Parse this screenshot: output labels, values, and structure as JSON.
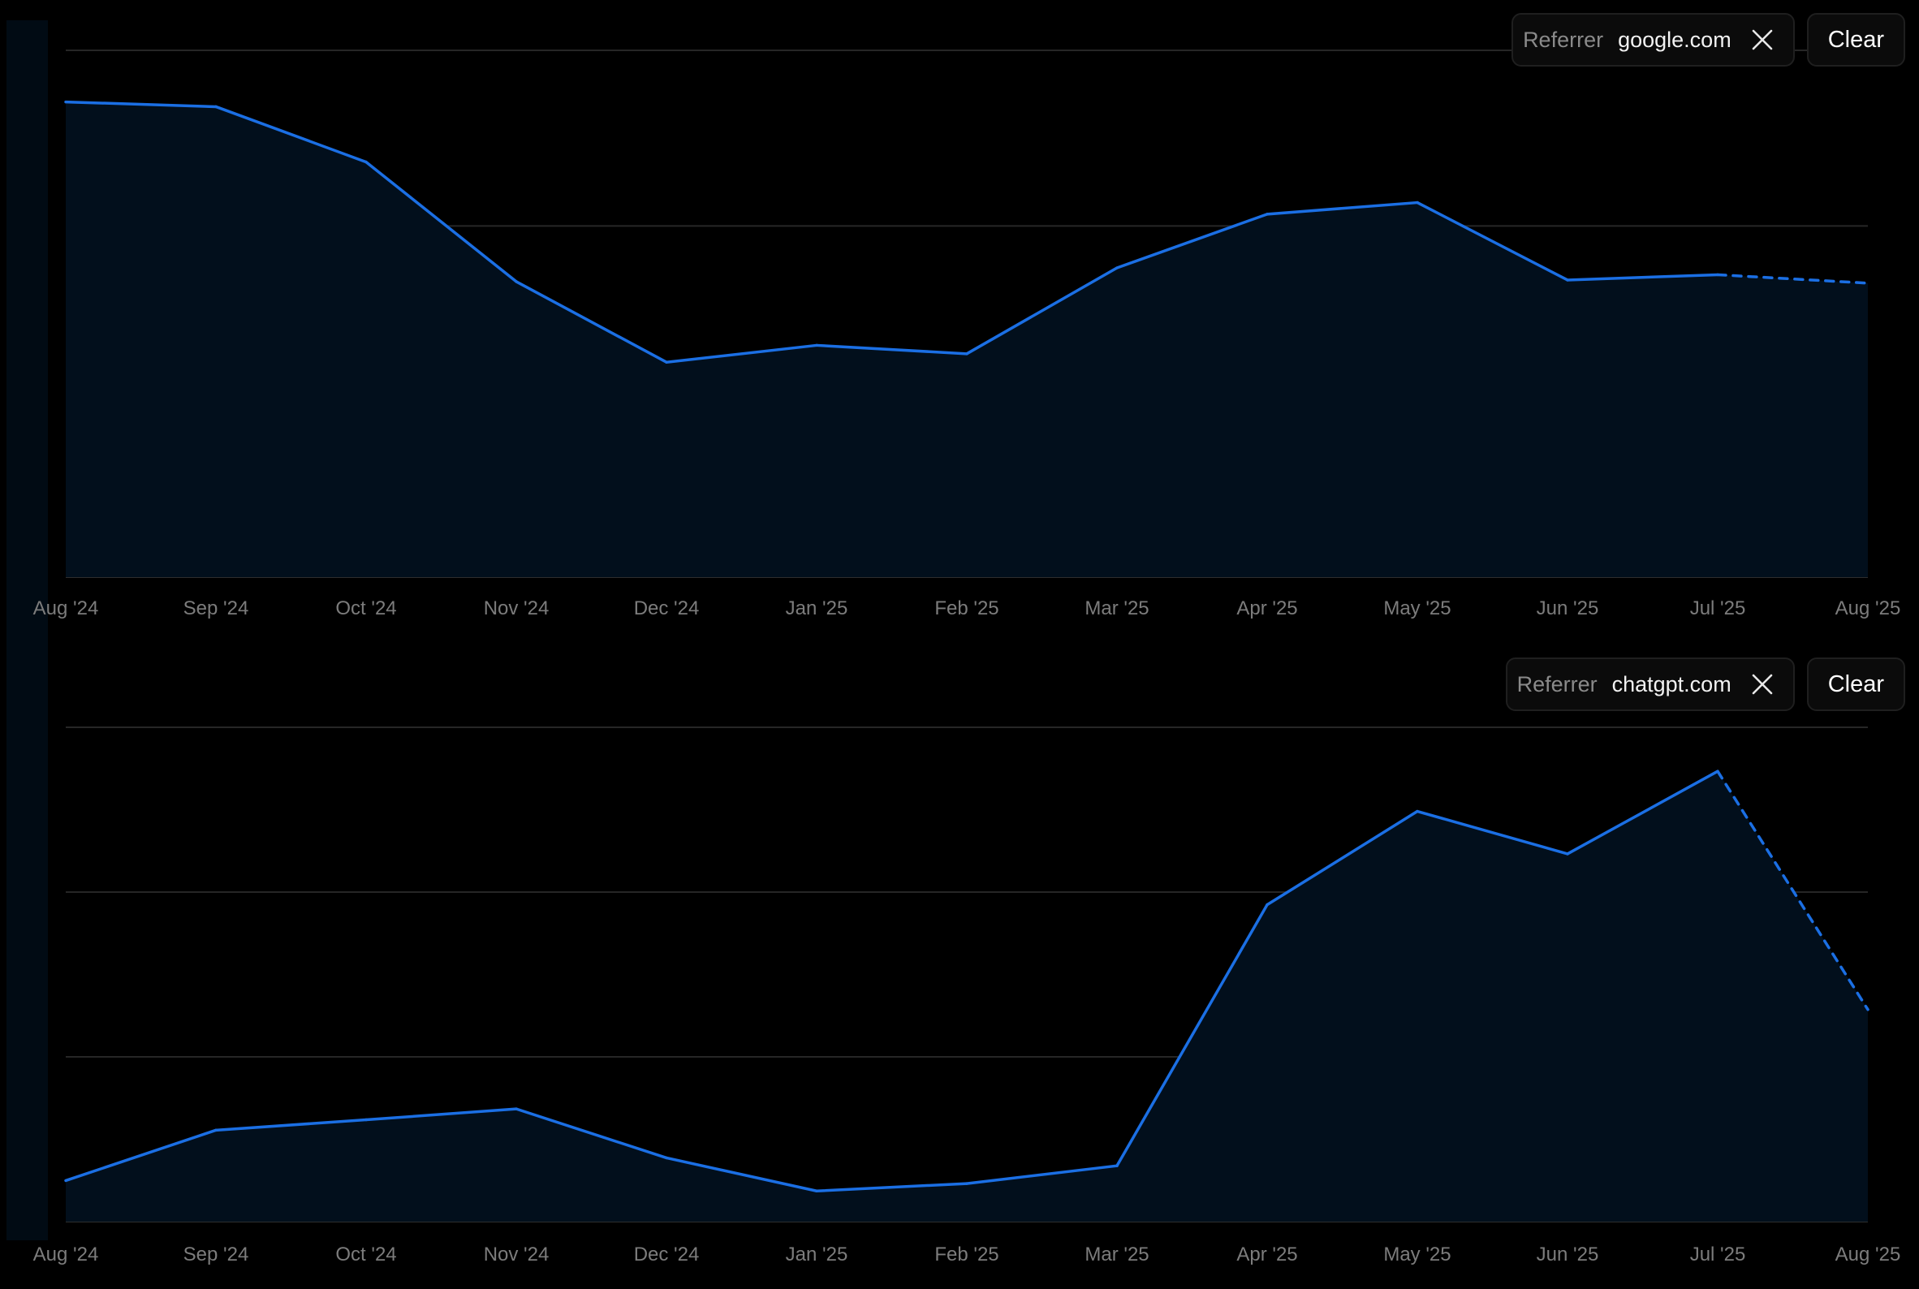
{
  "chart_data": [
    {
      "type": "area",
      "categories": [
        "Aug '24",
        "Sep '24",
        "Oct '24",
        "Nov '24",
        "Dec '24",
        "Jan '25",
        "Feb '25",
        "Mar '25",
        "Apr '25",
        "May '25",
        "Jun '25",
        "Jul '25",
        "Aug '25"
      ],
      "values": [
        0.902,
        0.893,
        0.788,
        0.561,
        0.408,
        0.44,
        0.424,
        0.587,
        0.689,
        0.711,
        0.564,
        0.574,
        0.558
      ],
      "ylim": [
        0,
        1
      ],
      "grid": true,
      "projected_from_index": 11,
      "series_color": "#1b6fe4",
      "filter": {
        "key": "Referrer",
        "value": "google.com",
        "clear_label": "Clear"
      }
    },
    {
      "type": "area",
      "categories": [
        "Aug '24",
        "Sep '24",
        "Oct '24",
        "Nov '24",
        "Dec '24",
        "Jan '25",
        "Feb '25",
        "Mar '25",
        "Apr '25",
        "May '25",
        "Jun '25",
        "Jul '25",
        "Aug '25"
      ],
      "values": [
        0.083,
        0.185,
        0.206,
        0.228,
        0.129,
        0.062,
        0.077,
        0.113,
        0.641,
        0.83,
        0.744,
        0.911,
        0.429
      ],
      "ylim": [
        0,
        1
      ],
      "grid": true,
      "projected_from_index": 11,
      "series_color": "#1b6fe4",
      "filter": {
        "key": "Referrer",
        "value": "chatgpt.com",
        "clear_label": "Clear"
      }
    }
  ]
}
